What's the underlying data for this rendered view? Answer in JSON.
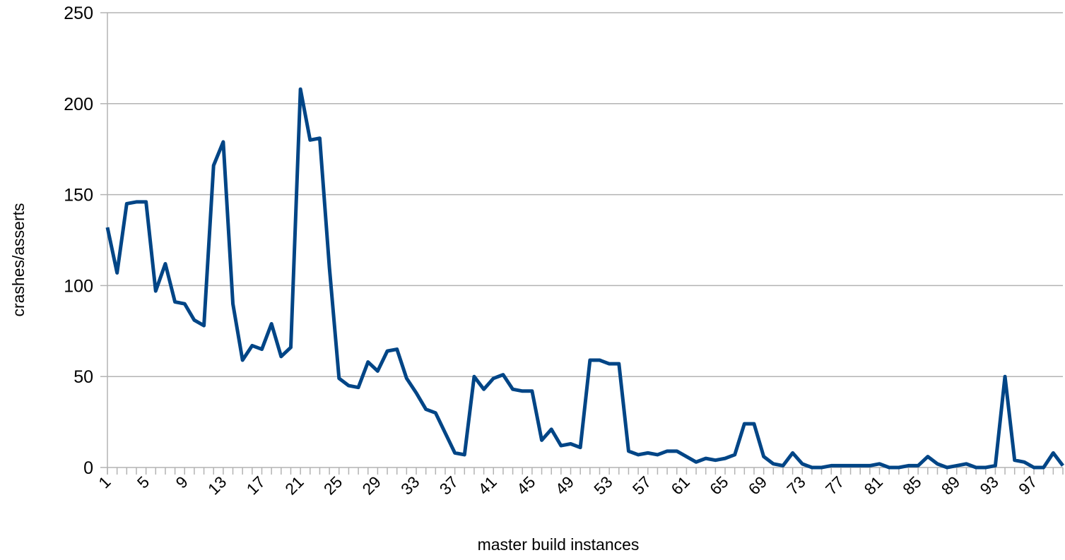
{
  "colors": {
    "series": "#004586",
    "grid": "#b3b3b3",
    "axis": "#b3b3b3",
    "background": "#ffffff"
  },
  "chart_data": {
    "type": "line",
    "title": "",
    "xlabel": "master build instances",
    "ylabel": "crashes/asserts",
    "ylim": [
      0,
      250
    ],
    "yticks": [
      0,
      50,
      100,
      150,
      200,
      250
    ],
    "x_tick_labels": [
      "1",
      "5",
      "9",
      "13",
      "17",
      "21",
      "25",
      "29",
      "33",
      "37",
      "41",
      "45",
      "49",
      "53",
      "57",
      "61",
      "65",
      "69",
      "73",
      "77",
      "81",
      "85",
      "89",
      "93",
      "97"
    ],
    "grid": "horizontal",
    "legend": "none",
    "series": [
      {
        "x": [
          1,
          2,
          3,
          4,
          5,
          6,
          7,
          8,
          9,
          10,
          11,
          12,
          13,
          14,
          15,
          16,
          17,
          18,
          19,
          20,
          21,
          22,
          23,
          24,
          25,
          26,
          27,
          28,
          29,
          30,
          31,
          32,
          33,
          34,
          35,
          36,
          37,
          38,
          39,
          40,
          41,
          42,
          43,
          44,
          45,
          46,
          47,
          48,
          49,
          50,
          51,
          52,
          53,
          54,
          55,
          56,
          57,
          58,
          59,
          60,
          61,
          62,
          63,
          64,
          65,
          66,
          67,
          68,
          69,
          70,
          71,
          72,
          73,
          74,
          75,
          76,
          77,
          78,
          79,
          80,
          81,
          82,
          83,
          84,
          85,
          86,
          87,
          88,
          89,
          90,
          91,
          92,
          93,
          94,
          95,
          96,
          97,
          98,
          99,
          100
        ],
        "values": [
          132,
          107,
          145,
          146,
          146,
          97,
          112,
          91,
          90,
          81,
          78,
          166,
          179,
          90,
          59,
          67,
          65,
          79,
          61,
          66,
          208,
          180,
          181,
          110,
          49,
          45,
          44,
          58,
          53,
          64,
          65,
          49,
          41,
          32,
          30,
          19,
          8,
          7,
          50,
          43,
          49,
          51,
          43,
          42,
          42,
          15,
          21,
          12,
          13,
          11,
          59,
          59,
          57,
          57,
          9,
          7,
          8,
          7,
          9,
          9,
          6,
          3,
          5,
          4,
          5,
          7,
          24,
          24,
          6,
          2,
          1,
          8,
          2,
          0,
          0,
          1,
          1,
          1,
          1,
          1,
          2,
          0,
          0,
          1,
          1,
          6,
          2,
          0,
          1,
          2,
          0,
          0,
          1,
          50,
          4,
          3,
          0,
          0,
          8,
          1
        ]
      }
    ]
  }
}
